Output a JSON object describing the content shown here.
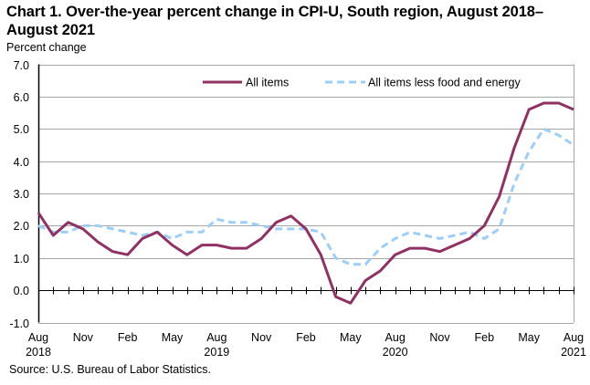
{
  "chart_data": {
    "type": "line",
    "title": "Chart 1. Over-the-year percent change in CPI-U, South region, August 2018–August 2021",
    "ylabel": "Percent change",
    "xlabel": "",
    "ylim": [
      -1.0,
      7.0
    ],
    "yticks": [
      "7.0",
      "6.0",
      "5.0",
      "4.0",
      "3.0",
      "2.0",
      "1.0",
      "0.0",
      "-1.0"
    ],
    "ytick_values": [
      7,
      6,
      5,
      4,
      3,
      2,
      1,
      0,
      -1
    ],
    "grid": true,
    "legend_position": "top-right",
    "x": [
      "Aug 2018",
      "Sep 2018",
      "Oct 2018",
      "Nov 2018",
      "Dec 2018",
      "Jan 2019",
      "Feb 2019",
      "Mar 2019",
      "Apr 2019",
      "May 2019",
      "Jun 2019",
      "Jul 2019",
      "Aug 2019",
      "Sep 2019",
      "Oct 2019",
      "Nov 2019",
      "Dec 2019",
      "Jan 2020",
      "Feb 2020",
      "Mar 2020",
      "Apr 2020",
      "May 2020",
      "Jun 2020",
      "Jul 2020",
      "Aug 2020",
      "Sep 2020",
      "Oct 2020",
      "Nov 2020",
      "Dec 2020",
      "Jan 2021",
      "Feb 2021",
      "Mar 2021",
      "Apr 2021",
      "May 2021",
      "Jun 2021",
      "Jul 2021",
      "Aug 2021"
    ],
    "xtick_labels": [
      {
        "index": 0,
        "month": "Aug",
        "year": "2018"
      },
      {
        "index": 3,
        "month": "Nov",
        "year": ""
      },
      {
        "index": 6,
        "month": "Feb",
        "year": ""
      },
      {
        "index": 9,
        "month": "May",
        "year": ""
      },
      {
        "index": 12,
        "month": "Aug",
        "year": "2019"
      },
      {
        "index": 15,
        "month": "Nov",
        "year": ""
      },
      {
        "index": 18,
        "month": "Feb",
        "year": ""
      },
      {
        "index": 21,
        "month": "May",
        "year": ""
      },
      {
        "index": 24,
        "month": "Aug",
        "year": "2020"
      },
      {
        "index": 27,
        "month": "Nov",
        "year": ""
      },
      {
        "index": 30,
        "month": "Feb",
        "year": ""
      },
      {
        "index": 33,
        "month": "May",
        "year": ""
      },
      {
        "index": 36,
        "month": "Aug",
        "year": "2021"
      }
    ],
    "series": [
      {
        "name": "All items",
        "color": "#913163",
        "style": "solid",
        "values": [
          2.4,
          1.7,
          2.1,
          1.9,
          1.5,
          1.2,
          1.1,
          1.6,
          1.8,
          1.4,
          1.1,
          1.4,
          1.4,
          1.3,
          1.3,
          1.6,
          2.1,
          2.3,
          1.9,
          1.1,
          -0.2,
          -0.4,
          0.3,
          0.6,
          1.1,
          1.3,
          1.3,
          1.2,
          1.4,
          1.6,
          2.0,
          2.9,
          4.4,
          5.6,
          5.8,
          5.8,
          5.6
        ]
      },
      {
        "name": "All items less food and energy",
        "color": "#9BCFFA",
        "style": "dashed",
        "values": [
          2.0,
          1.8,
          1.8,
          2.0,
          2.0,
          1.9,
          1.8,
          1.7,
          1.8,
          1.6,
          1.8,
          1.8,
          2.2,
          2.1,
          2.1,
          2.0,
          1.9,
          1.9,
          1.9,
          1.8,
          1.0,
          0.8,
          0.8,
          1.3,
          1.6,
          1.8,
          1.7,
          1.6,
          1.7,
          1.8,
          1.6,
          1.9,
          3.3,
          4.3,
          5.0,
          4.8,
          4.5
        ]
      }
    ],
    "source": "Source: U.S. Bureau of Labor Statistics."
  }
}
